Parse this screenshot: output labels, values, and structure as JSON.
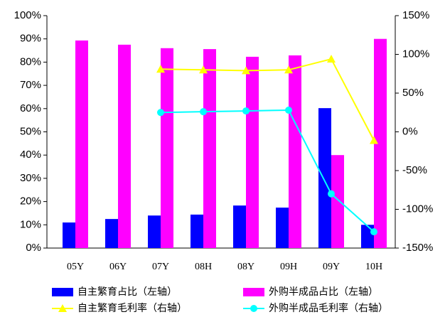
{
  "chart_data": {
    "type": "bar-line",
    "categories": [
      "05Y",
      "06Y",
      "07Y",
      "08H",
      "08Y",
      "09H",
      "09Y",
      "10H"
    ],
    "series": [
      {
        "name": "自主繁育占比（左轴）",
        "type": "bar",
        "color": "#0000ff",
        "values": [
          11,
          12.5,
          14,
          14.4,
          18.3,
          17.4,
          60.2,
          10
        ]
      },
      {
        "name": "外购半成品占比（左轴）",
        "type": "bar",
        "color": "#ff00ff",
        "values": [
          89.3,
          87.5,
          86,
          85.6,
          82.3,
          82.9,
          40,
          90
        ]
      },
      {
        "name": "自主繁育毛利率（右轴）",
        "type": "line",
        "axis": "y2",
        "marker": "triangle",
        "color": "#ffff00",
        "values": [
          null,
          null,
          81,
          80,
          79,
          80,
          94,
          -11
        ]
      },
      {
        "name": "外购半成品毛利率（右轴）",
        "type": "line",
        "axis": "y2",
        "marker": "circle",
        "color": "#00ffff",
        "values": [
          null,
          null,
          25,
          26,
          27,
          28,
          -80,
          -129
        ]
      }
    ],
    "ylim": [
      0,
      100
    ],
    "yticks": [
      {
        "value": 0,
        "label": "0%"
      },
      {
        "value": 10,
        "label": "10%"
      },
      {
        "value": 20,
        "label": "20%"
      },
      {
        "value": 30,
        "label": "30%"
      },
      {
        "value": 40,
        "label": "40%"
      },
      {
        "value": 50,
        "label": "50%"
      },
      {
        "value": 60,
        "label": "60%"
      },
      {
        "value": 70,
        "label": "70%"
      },
      {
        "value": 80,
        "label": "80%"
      },
      {
        "value": 90,
        "label": "90%"
      },
      {
        "value": 100,
        "label": "100%"
      }
    ],
    "y2lim": [
      -150,
      150
    ],
    "y2ticks": [
      {
        "value": -150,
        "label": "-150%"
      },
      {
        "value": -100,
        "label": "-100%"
      },
      {
        "value": -50,
        "label": "-50%"
      },
      {
        "value": 0,
        "label": "0%"
      },
      {
        "value": 50,
        "label": "50%"
      },
      {
        "value": 100,
        "label": "100%"
      },
      {
        "value": 150,
        "label": "150%"
      }
    ],
    "grid": false
  }
}
